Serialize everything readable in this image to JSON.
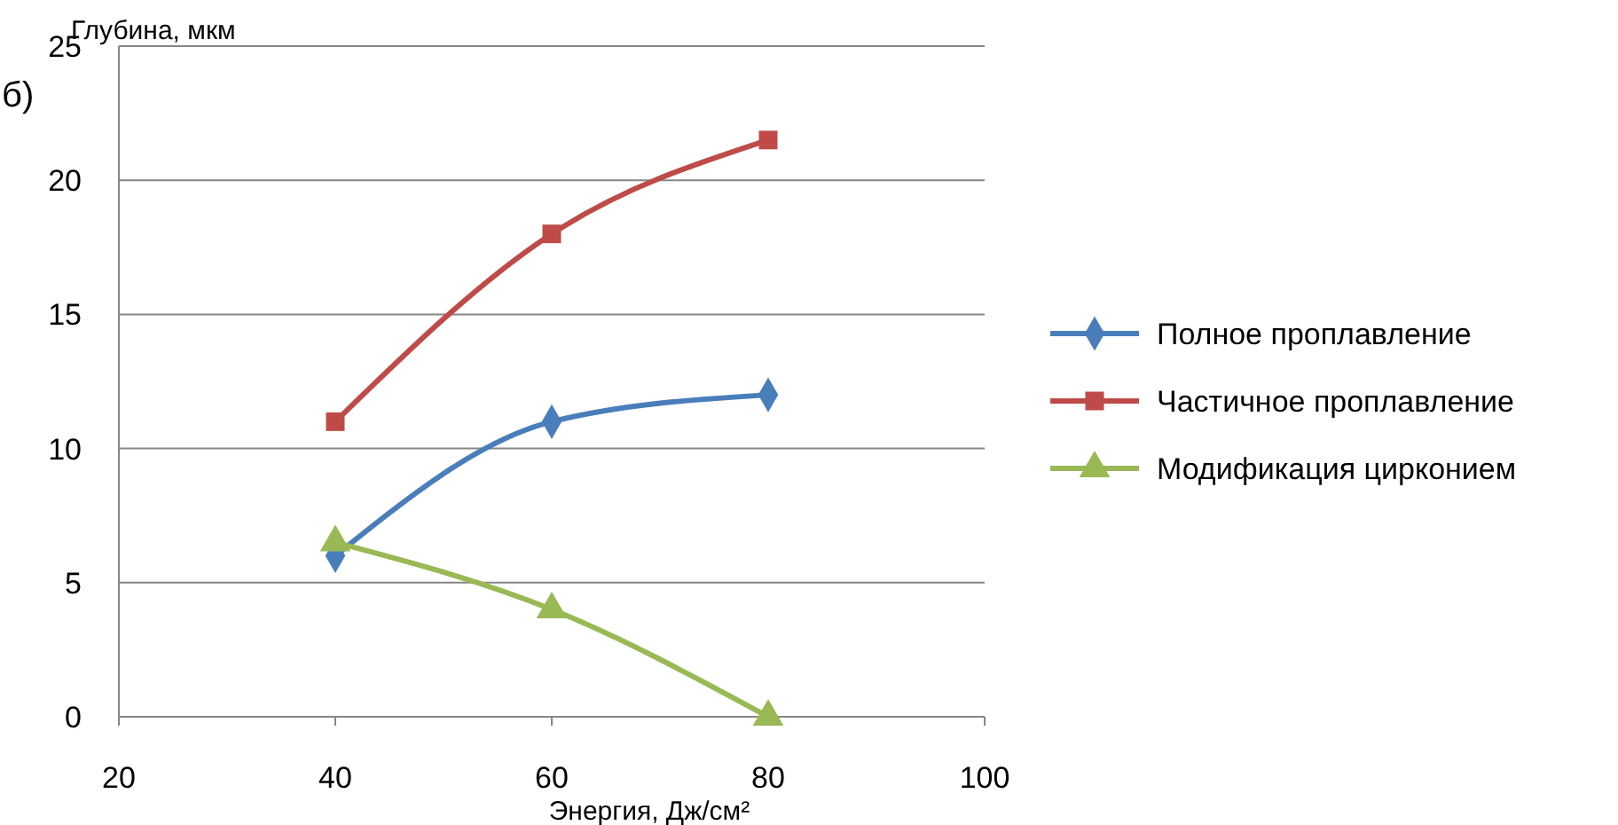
{
  "chart_data": {
    "type": "line",
    "xlabel": "Энергия, Дж/см²",
    "ylabel": "Глубина, мкм",
    "annotations": [
      "б)"
    ],
    "x": [
      40,
      60,
      80
    ],
    "xlim": [
      20,
      100
    ],
    "xticks": [
      20,
      40,
      60,
      80,
      100
    ],
    "ylim": [
      0,
      25
    ],
    "yticks": [
      0,
      5,
      10,
      15,
      20,
      25
    ],
    "grid": "y",
    "legend": "right",
    "series": [
      {
        "name": "Полное проплавление",
        "color": "#4a7ebb",
        "marker": "diamond",
        "values": [
          6,
          11,
          12
        ]
      },
      {
        "name": "Частичное проплавление",
        "color": "#be4b48",
        "marker": "square",
        "values": [
          11,
          18,
          21.5
        ]
      },
      {
        "name": "Модификация цирконием",
        "color": "#98b954",
        "marker": "triangle",
        "values": [
          6.5,
          4,
          0
        ]
      }
    ]
  }
}
